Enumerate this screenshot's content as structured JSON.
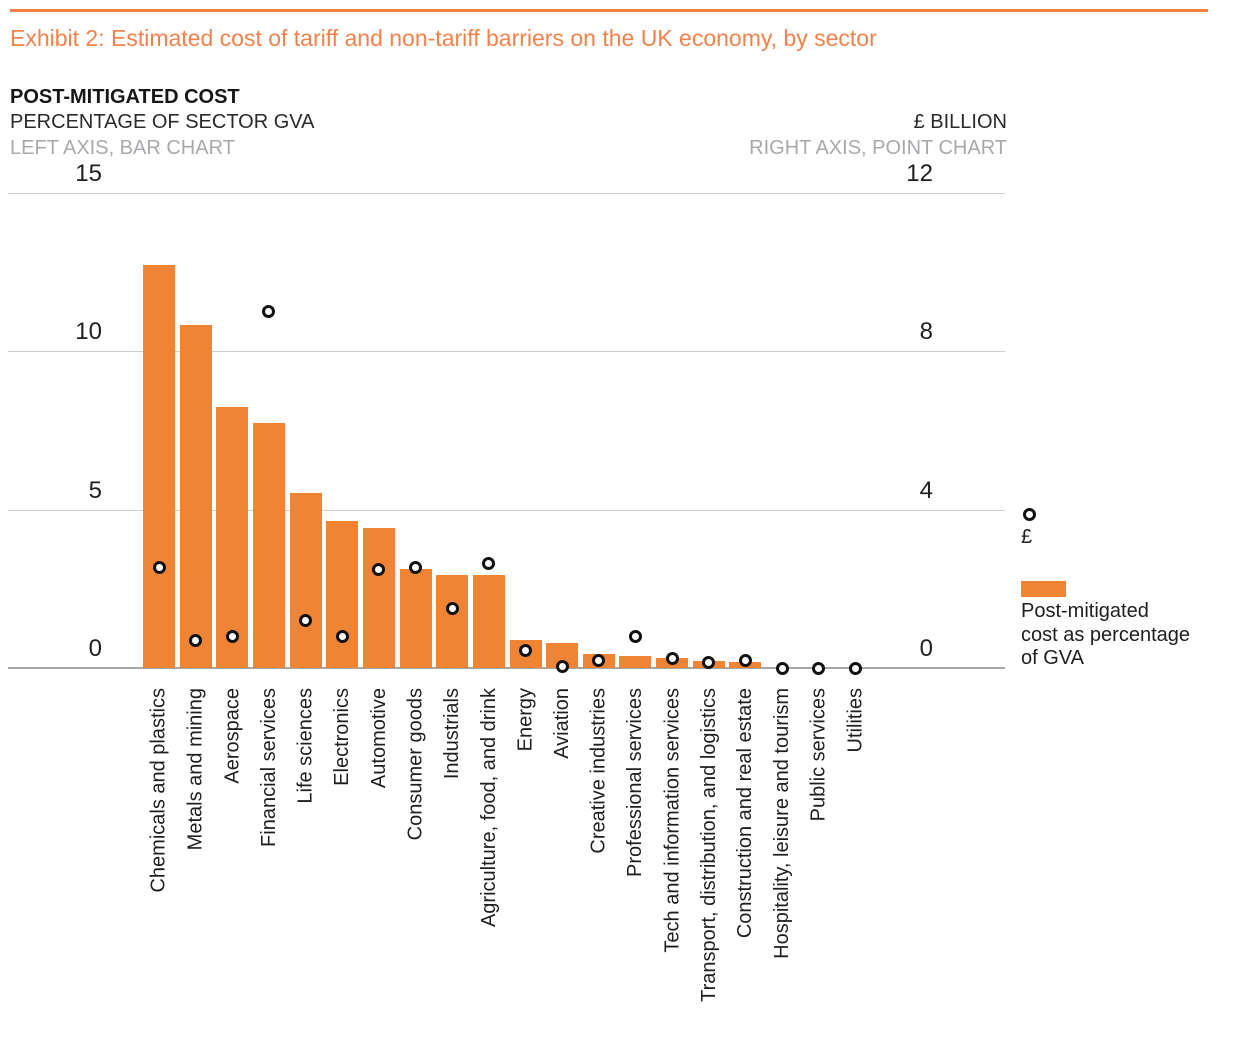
{
  "exhibit": {
    "title": "Exhibit 2: Estimated cost of tariff and non-tariff barriers on the UK economy, by sector"
  },
  "header": {
    "title": "POST-MITIGATED COST",
    "left_axis_subtitle": "PERCENTAGE OF SECTOR GVA",
    "left_axis_note": "LEFT AXIS, BAR CHART",
    "right_axis_subtitle": "£ BILLION",
    "right_axis_note": "RIGHT AXIS, POINT CHART"
  },
  "legend": {
    "point_label": "£",
    "bar_label": "Post-mitigated cost as percentage of GVA",
    "bar_label_lines": [
      "Post-mitigated",
      "cost as percentage",
      "of GVA"
    ]
  },
  "colors": {
    "bar_orange": "#f08435",
    "title_orange": "#f0824c",
    "rule_orange": "#f0823f",
    "grey_text": "#a7a9ac",
    "gridline": "#cdcdcd",
    "baseline": "#a6a6a6",
    "marker_stroke": "#111111"
  },
  "chart_data": {
    "type": "bar",
    "subtype": "dual-axis bar + point chart",
    "title": "POST-MITIGATED COST",
    "categories": [
      "Chemicals and plastics",
      "Metals and mining",
      "Aerospace",
      "Financial services",
      "Life sciences",
      "Electronics",
      "Automotive",
      "Consumer goods",
      "Industrials",
      "Agriculture, food, and drink",
      "Energy",
      "Aviation",
      "Creative industries",
      "Professional services",
      "Tech and information services",
      "Transport, distribution, and logistics",
      "Construction and real estate",
      "Hospitality, leisure and tourism",
      "Public services",
      "Utilities"
    ],
    "series": [
      {
        "name": "Post-mitigated cost as percentage of GVA",
        "type": "bar",
        "axis": "left",
        "unit": "% of sector GVA",
        "values": [
          12.7,
          10.8,
          8.2,
          7.7,
          5.5,
          4.6,
          4.4,
          3.1,
          2.9,
          2.9,
          0.85,
          0.75,
          0.4,
          0.35,
          0.3,
          0.2,
          0.15,
          0,
          0,
          0
        ]
      },
      {
        "name": "£",
        "type": "point",
        "axis": "right",
        "unit": "£ billion",
        "values": [
          2.55,
          0.7,
          0.8,
          9.0,
          1.2,
          0.8,
          2.5,
          2.55,
          1.5,
          2.65,
          0.45,
          0.05,
          0.2,
          0.8,
          0.25,
          0.15,
          0.2,
          0,
          0,
          0
        ]
      }
    ],
    "left_axis": {
      "title": "PERCENTAGE OF SECTOR GVA",
      "ticks": [
        15,
        10,
        5,
        0
      ],
      "range": [
        0,
        15
      ]
    },
    "right_axis": {
      "title": "£ BILLION",
      "ticks": [
        12,
        8,
        4,
        0
      ],
      "range": [
        0,
        12
      ]
    },
    "grid": true,
    "legend_position": "right",
    "x_labels_rotation": 90
  }
}
